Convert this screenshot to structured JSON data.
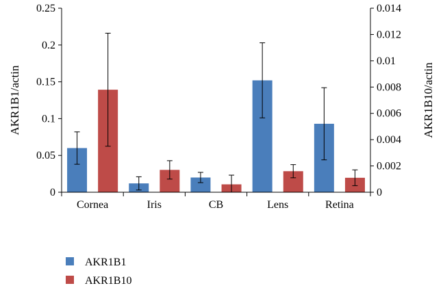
{
  "chart_data": {
    "type": "bar",
    "categories": [
      "Cornea",
      "Iris",
      "CB",
      "Lens",
      "Retina"
    ],
    "series": [
      {
        "name": "AKR1B1",
        "axis": "left",
        "color": "#4a7ebb",
        "values": [
          0.06,
          0.012,
          0.02,
          0.152,
          0.093
        ],
        "error": [
          0.022,
          0.009,
          0.007,
          0.051,
          0.049
        ]
      },
      {
        "name": "AKR1B10",
        "axis": "right",
        "color": "#be4b48",
        "values": [
          0.0078,
          0.0017,
          0.0006,
          0.0016,
          0.0011
        ],
        "error": [
          0.0043,
          0.0007,
          0.0007,
          0.0005,
          0.0006
        ]
      }
    ],
    "y_left": {
      "label": "AKR1B1/actin",
      "range": [
        0,
        0.25
      ],
      "ticks": [
        "0",
        "0.05",
        "0.1",
        "0.15",
        "0.2",
        "0.25"
      ]
    },
    "y_right": {
      "label": "AKR1B10/actin",
      "range": [
        0,
        0.014
      ],
      "ticks": [
        "0",
        "0.002",
        "0.004",
        "0.006",
        "0.008",
        "0.01",
        "0.012",
        "0.014"
      ]
    },
    "grid": false,
    "legend_position": "bottom-left"
  }
}
